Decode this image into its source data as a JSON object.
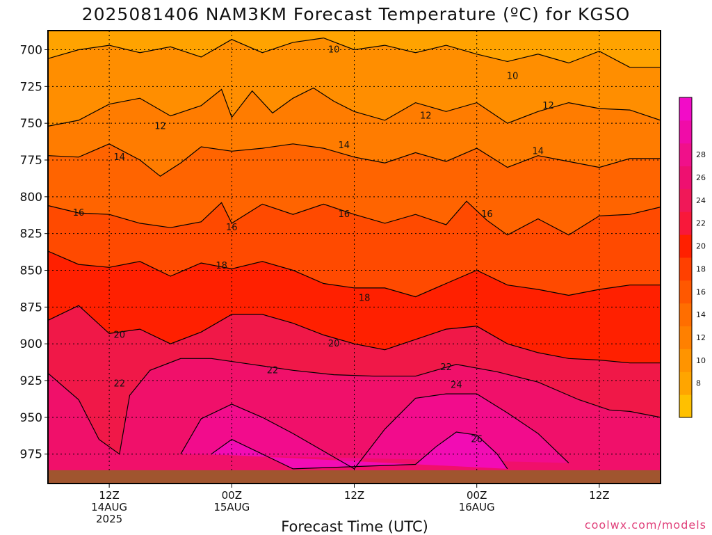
{
  "chart_data": {
    "type": "heatmap",
    "title": "2025081406 NAM3KM Forecast Temperature (ºC) for KGSO",
    "xlabel": "Forecast Time (UTC)",
    "ylabel": "",
    "credit": "coolwx.com/models",
    "y_axis": {
      "ticks": [
        700,
        725,
        750,
        775,
        800,
        825,
        850,
        875,
        900,
        925,
        950,
        975
      ],
      "range": [
        687,
        995
      ],
      "inverted": true,
      "grid": "dotted"
    },
    "x_axis": {
      "range_hours": [
        0,
        60
      ],
      "ticks": [
        {
          "hour": 6,
          "lines": [
            "12Z",
            "14AUG",
            "2025"
          ]
        },
        {
          "hour": 18,
          "lines": [
            "00Z",
            "15AUG"
          ]
        },
        {
          "hour": 30,
          "lines": [
            "12Z"
          ]
        },
        {
          "hour": 42,
          "lines": [
            "00Z",
            "16AUG"
          ]
        },
        {
          "hour": 54,
          "lines": [
            "12Z"
          ]
        }
      ]
    },
    "contour_levels": [
      8,
      10,
      12,
      14,
      16,
      18,
      20,
      22,
      24,
      26,
      28
    ],
    "contours": [
      {
        "level": 10,
        "points": [
          [
            0,
            706
          ],
          [
            3,
            700
          ],
          [
            6,
            697
          ],
          [
            9,
            702
          ],
          [
            12,
            698
          ],
          [
            15,
            705
          ],
          [
            18,
            693
          ],
          [
            21,
            702
          ],
          [
            24,
            695
          ],
          [
            27,
            692
          ],
          [
            30,
            700
          ],
          [
            33,
            697
          ],
          [
            36,
            702
          ],
          [
            39,
            697
          ],
          [
            42,
            703
          ],
          [
            45,
            708
          ],
          [
            48,
            703
          ],
          [
            51,
            709
          ],
          [
            54,
            701
          ],
          [
            57,
            712
          ],
          [
            60,
            712
          ]
        ],
        "labels": [
          [
            28,
            700
          ],
          [
            45.5,
            718
          ]
        ]
      },
      {
        "level": 12,
        "points": [
          [
            0,
            752
          ],
          [
            3,
            748
          ],
          [
            6,
            737
          ],
          [
            9,
            733
          ],
          [
            12,
            745
          ],
          [
            15,
            738
          ],
          [
            17,
            727
          ],
          [
            18,
            746
          ],
          [
            20,
            728
          ],
          [
            22,
            743
          ],
          [
            24,
            733
          ],
          [
            26,
            726
          ],
          [
            28,
            735
          ],
          [
            30,
            742
          ],
          [
            33,
            748
          ],
          [
            36,
            736
          ],
          [
            39,
            742
          ],
          [
            42,
            736
          ],
          [
            45,
            750
          ],
          [
            48,
            742
          ],
          [
            51,
            736
          ],
          [
            54,
            740
          ],
          [
            57,
            741
          ],
          [
            60,
            748
          ]
        ],
        "labels": [
          [
            11,
            752
          ],
          [
            37,
            745
          ],
          [
            49,
            738
          ]
        ]
      },
      {
        "level": 14,
        "points": [
          [
            0,
            772
          ],
          [
            3,
            773
          ],
          [
            6,
            764
          ],
          [
            9,
            775
          ],
          [
            11,
            786
          ],
          [
            13,
            777
          ],
          [
            15,
            766
          ],
          [
            18,
            769
          ],
          [
            21,
            767
          ],
          [
            24,
            764
          ],
          [
            27,
            767
          ],
          [
            30,
            773
          ],
          [
            33,
            777
          ],
          [
            36,
            770
          ],
          [
            39,
            776
          ],
          [
            42,
            767
          ],
          [
            45,
            780
          ],
          [
            48,
            772
          ],
          [
            51,
            776
          ],
          [
            54,
            780
          ],
          [
            57,
            774
          ],
          [
            60,
            774
          ]
        ],
        "labels": [
          [
            7,
            773
          ],
          [
            29,
            765
          ],
          [
            48,
            769
          ]
        ]
      },
      {
        "level": 16,
        "points": [
          [
            0,
            806
          ],
          [
            3,
            811
          ],
          [
            6,
            812
          ],
          [
            9,
            818
          ],
          [
            12,
            821
          ],
          [
            15,
            817
          ],
          [
            17,
            804
          ],
          [
            18,
            818
          ],
          [
            21,
            805
          ],
          [
            24,
            812
          ],
          [
            27,
            805
          ],
          [
            30,
            812
          ],
          [
            33,
            818
          ],
          [
            36,
            812
          ],
          [
            39,
            819
          ],
          [
            41,
            803
          ],
          [
            43,
            816
          ],
          [
            45,
            826
          ],
          [
            48,
            815
          ],
          [
            51,
            826
          ],
          [
            54,
            813
          ],
          [
            57,
            812
          ],
          [
            60,
            807
          ]
        ],
        "labels": [
          [
            3,
            811
          ],
          [
            18,
            821
          ],
          [
            29,
            812
          ],
          [
            43,
            812
          ]
        ]
      },
      {
        "level": 18,
        "points": [
          [
            0,
            837
          ],
          [
            3,
            846
          ],
          [
            6,
            848
          ],
          [
            9,
            844
          ],
          [
            12,
            854
          ],
          [
            15,
            845
          ],
          [
            18,
            849
          ],
          [
            21,
            844
          ],
          [
            24,
            850
          ],
          [
            27,
            859
          ],
          [
            30,
            862
          ],
          [
            33,
            862
          ],
          [
            36,
            868
          ],
          [
            39,
            859
          ],
          [
            42,
            850
          ],
          [
            45,
            860
          ],
          [
            48,
            863
          ],
          [
            51,
            867
          ],
          [
            54,
            863
          ],
          [
            57,
            860
          ],
          [
            60,
            860
          ]
        ],
        "labels": [
          [
            17,
            847
          ],
          [
            31,
            869
          ]
        ]
      },
      {
        "level": 20,
        "points": [
          [
            0,
            884
          ],
          [
            3,
            874
          ],
          [
            6,
            893
          ],
          [
            9,
            890
          ],
          [
            12,
            900
          ],
          [
            15,
            892
          ],
          [
            18,
            880
          ],
          [
            21,
            880
          ],
          [
            24,
            886
          ],
          [
            27,
            894
          ],
          [
            30,
            900
          ],
          [
            33,
            904
          ],
          [
            36,
            897
          ],
          [
            39,
            890
          ],
          [
            42,
            888
          ],
          [
            45,
            900
          ],
          [
            48,
            906
          ],
          [
            51,
            910
          ],
          [
            54,
            911
          ],
          [
            57,
            913
          ],
          [
            60,
            913
          ]
        ],
        "labels": [
          [
            7,
            894
          ],
          [
            28,
            900
          ]
        ]
      },
      {
        "level": 22,
        "points": [
          [
            0,
            920
          ],
          [
            3,
            938
          ],
          [
            5,
            965
          ],
          [
            7,
            975
          ],
          [
            8,
            935
          ],
          [
            10,
            918
          ],
          [
            13,
            910
          ],
          [
            16,
            910
          ],
          [
            20,
            914
          ],
          [
            24,
            918
          ],
          [
            28,
            921
          ],
          [
            32,
            922
          ],
          [
            36,
            922
          ],
          [
            40,
            914
          ],
          [
            44,
            919
          ],
          [
            48,
            926
          ],
          [
            52,
            938
          ],
          [
            55,
            945
          ],
          [
            57,
            946
          ],
          [
            60,
            950
          ]
        ],
        "labels": [
          [
            7,
            927
          ],
          [
            22,
            918
          ],
          [
            39,
            916
          ]
        ]
      },
      {
        "level": 24,
        "points": [
          [
            13,
            975
          ],
          [
            15,
            951
          ],
          [
            18,
            941
          ],
          [
            21,
            950
          ],
          [
            24,
            961
          ],
          [
            27,
            973
          ],
          [
            30,
            985
          ],
          [
            33,
            958
          ],
          [
            36,
            937
          ],
          [
            39,
            934
          ],
          [
            42,
            934
          ],
          [
            45,
            947
          ],
          [
            48,
            961
          ],
          [
            51,
            981
          ]
        ],
        "labels": [
          [
            40,
            928
          ]
        ]
      },
      {
        "level": 26,
        "points": [
          [
            16,
            975
          ],
          [
            18,
            965
          ],
          [
            21,
            975
          ],
          [
            24,
            985
          ],
          [
            36,
            982
          ],
          [
            38,
            970
          ],
          [
            40,
            960
          ],
          [
            42,
            962
          ],
          [
            44,
            975
          ],
          [
            45,
            985
          ]
        ],
        "labels": [
          [
            42,
            965
          ]
        ]
      }
    ],
    "colorbar": {
      "labels": [
        8,
        10,
        12,
        14,
        16,
        18,
        20,
        22,
        24,
        26,
        28
      ],
      "colors": [
        "#FFC000",
        "#FFA500",
        "#FF9400",
        "#FF8000",
        "#FF6E00",
        "#FF5800",
        "#FF4000",
        "#FF2000",
        "#F8183A",
        "#F01858",
        "#EE1070",
        "#F0108A",
        "#F00CA8",
        "#F20CC8"
      ]
    },
    "fill_colors": {
      "below_10": "#FFA300",
      "10_12": "#FF8E00",
      "12_14": "#FF7C00",
      "14_16": "#FF6400",
      "16_18": "#FF4A00",
      "18_20": "#FF2000",
      "20_22": "#F01848",
      "22_24": "#F0106A",
      "24_26": "#F20C8C",
      "26_28": "#F20CB4",
      "ground": "#A0552F"
    }
  }
}
